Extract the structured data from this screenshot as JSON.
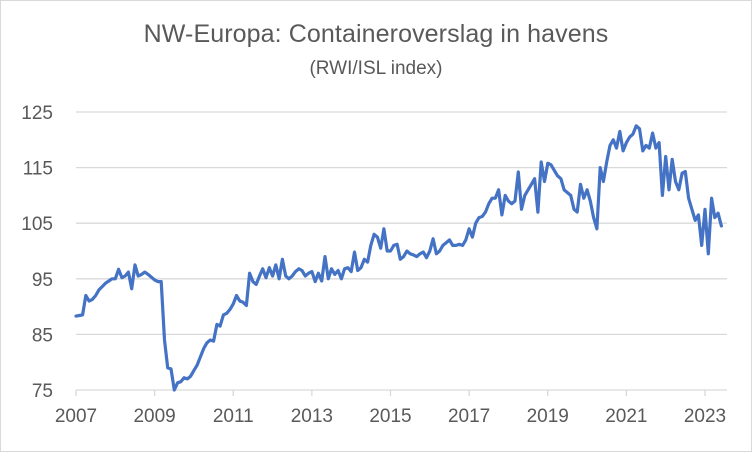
{
  "chart_data": {
    "type": "line",
    "title": "NW-Europa: Containeroverslag in havens",
    "subtitle": "(RWI/ISL index)",
    "xlabel": "",
    "ylabel": "",
    "ylim": [
      75,
      125
    ],
    "yticks": [
      75,
      85,
      95,
      105,
      115,
      125
    ],
    "ytick_labels": [
      "75",
      "85",
      "95",
      "105",
      "115",
      "125"
    ],
    "xlim": [
      2007.0,
      2023.9
    ],
    "xticks": [
      2007,
      2009,
      2011,
      2013,
      2015,
      2017,
      2019,
      2021,
      2023
    ],
    "xtick_labels": [
      "2007",
      "2009",
      "2011",
      "2013",
      "2015",
      "2017",
      "2019",
      "2021",
      "2023"
    ],
    "grid": "horizontal",
    "legend": "none",
    "line_color": "#4472c4",
    "x_start": "2007-01",
    "frequency": "monthly",
    "series": [
      {
        "name": "RWI/ISL index NW-Europa",
        "values": [
          88.3,
          88.4,
          88.5,
          92.0,
          91.0,
          91.3,
          92.0,
          93.0,
          93.6,
          94.2,
          94.6,
          95.0,
          95.0,
          96.7,
          95.2,
          95.5,
          96.2,
          93.2,
          97.5,
          95.5,
          95.8,
          96.2,
          95.8,
          95.3,
          94.8,
          94.5,
          94.5,
          84.0,
          79.0,
          78.8,
          75.0,
          76.3,
          76.5,
          77.2,
          77.0,
          77.5,
          78.5,
          79.5,
          81.0,
          82.5,
          83.5,
          84.0,
          83.8,
          86.8,
          86.5,
          88.5,
          88.8,
          89.5,
          90.5,
          92.0,
          91.0,
          90.8,
          90.2,
          96.0,
          94.5,
          94.0,
          95.5,
          96.8,
          95.2,
          97.0,
          95.5,
          97.5,
          95.0,
          98.5,
          95.5,
          95.0,
          95.5,
          96.3,
          96.8,
          96.5,
          95.5,
          96.0,
          96.3,
          94.5,
          96.0,
          94.6,
          99.0,
          95.0,
          96.8,
          95.8,
          96.5,
          95.0,
          96.8,
          97.0,
          96.3,
          99.8,
          96.5,
          97.0,
          98.5,
          98.0,
          101.0,
          103.0,
          102.5,
          100.5,
          104.0,
          100.0,
          100.0,
          101.0,
          101.2,
          98.5,
          99.0,
          100.0,
          99.5,
          99.3,
          99.0,
          99.5,
          99.8,
          98.8,
          100.0,
          102.2,
          99.5,
          100.0,
          101.0,
          101.5,
          102.0,
          101.0,
          101.0,
          101.2,
          101.0,
          102.0,
          104.0,
          102.5,
          105.0,
          106.0,
          106.2,
          107.0,
          108.5,
          109.5,
          109.5,
          111.0,
          106.5,
          110.0,
          109.0,
          108.5,
          109.0,
          114.2,
          107.5,
          110.0,
          111.0,
          112.0,
          113.0,
          107.0,
          116.0,
          112.5,
          115.8,
          115.5,
          114.5,
          113.5,
          113.0,
          111.0,
          110.5,
          110.0,
          107.5,
          107.0,
          112.0,
          109.5,
          111.0,
          109.0,
          106.0,
          104.0,
          115.0,
          112.5,
          116.0,
          119.0,
          120.0,
          118.5,
          121.5,
          118.0,
          119.5,
          120.5,
          121.0,
          122.5,
          122.0,
          118.0,
          119.0,
          118.5,
          121.2,
          118.5,
          119.5,
          110.0,
          117.0,
          111.0,
          116.5,
          112.5,
          111.0,
          114.0,
          114.3,
          109.5,
          107.5,
          105.5,
          106.5,
          101.0,
          107.5,
          99.5,
          109.5,
          106.0,
          106.8,
          104.5
        ]
      }
    ]
  }
}
